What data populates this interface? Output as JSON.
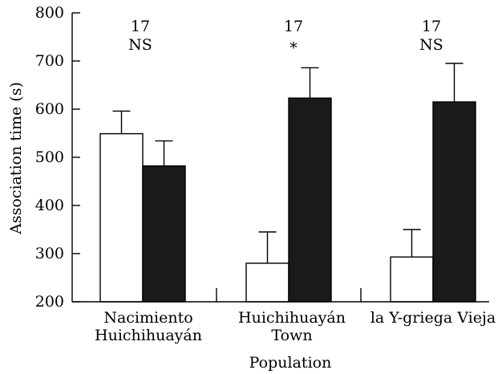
{
  "chart_data": {
    "type": "bar",
    "title": "",
    "xlabel": "Population",
    "ylabel": "Association time (s)",
    "ylim": [
      200,
      800
    ],
    "yticks": [
      200,
      300,
      400,
      500,
      600,
      700,
      800
    ],
    "grid": false,
    "legend": "none",
    "categories": [
      [
        "Nacimiento",
        "Huichihuayán"
      ],
      [
        "Huichihuayán",
        "Town"
      ],
      [
        "la Y-griega Vieja"
      ]
    ],
    "series": [
      {
        "fill": "#ffffff",
        "values": [
          549,
          280,
          293
        ],
        "errors": [
          47,
          65,
          57
        ]
      },
      {
        "fill": "#1a1a1a",
        "values": [
          482,
          623,
          615
        ],
        "errors": [
          52,
          63,
          80
        ]
      }
    ],
    "annotations": [
      {
        "n": "17",
        "sig": "NS"
      },
      {
        "n": "17",
        "sig": "*"
      },
      {
        "n": "17",
        "sig": "NS"
      }
    ]
  }
}
